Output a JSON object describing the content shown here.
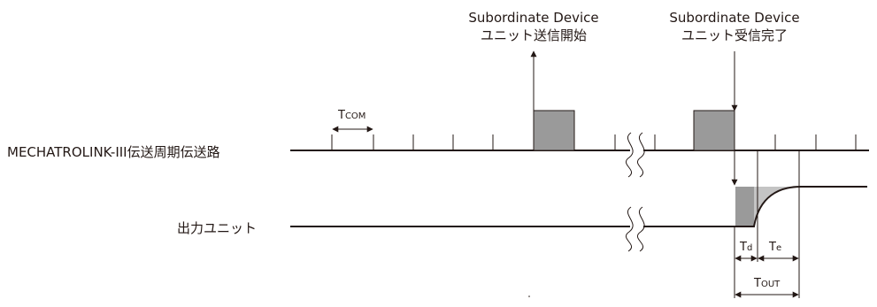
{
  "signals": {
    "bus_label": "MECHATROLINK-III伝送周期伝送路",
    "output_label": "出力ユニット"
  },
  "events": {
    "send_start": {
      "line1": "Subordinate Device",
      "line2": "ユニット送信開始"
    },
    "recv_complete": {
      "line1": "Subordinate Device",
      "line2": "ユニット受信完了"
    }
  },
  "timing": {
    "tcom": {
      "main": "T",
      "sub": "COM"
    },
    "td": {
      "main": "T",
      "sub": "d"
    },
    "te": {
      "main": "T",
      "sub": "e"
    },
    "tout": {
      "main": "T",
      "sub": "OUT"
    }
  },
  "colors": {
    "ink": "#231815",
    "fill": "#9a9a9a",
    "light_fill": "#c4c4c4"
  }
}
